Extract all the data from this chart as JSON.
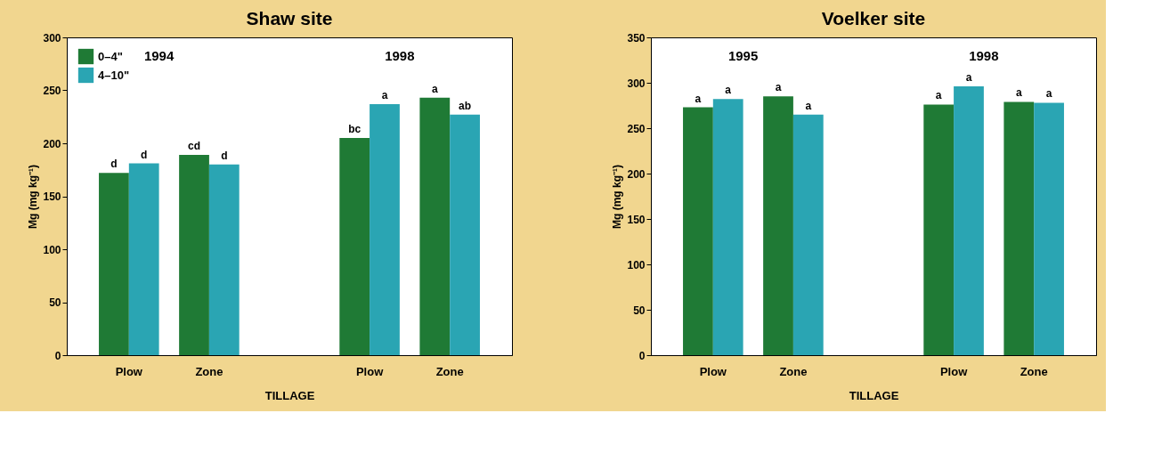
{
  "chart_data": [
    {
      "type": "bar",
      "title": "Shaw site",
      "xlabel": "TILLAGE",
      "ylabel": "Mg (mg kg⁻¹)",
      "categories": [
        "Plow",
        "Zone",
        null,
        "Plow",
        "Zone"
      ],
      "series": [
        {
          "name": "0–4\"",
          "color": "#1f7a35",
          "values": [
            172,
            189,
            null,
            205,
            243
          ],
          "value_labels": [
            "d",
            "cd",
            null,
            "bc",
            "a"
          ]
        },
        {
          "name": "4–10\"",
          "color": "#2aa5b3",
          "values": [
            181,
            180,
            null,
            237,
            227
          ],
          "value_labels": [
            "d",
            "d",
            null,
            "a",
            "ab"
          ]
        }
      ],
      "ylim": [
        0,
        300
      ],
      "yticks": [
        0,
        50,
        100,
        150,
        200,
        250,
        300
      ],
      "grid": false,
      "legend": "top left",
      "annotations": [
        "1994",
        "1998"
      ]
    },
    {
      "type": "bar",
      "title": "Voelker site",
      "xlabel": "TILLAGE",
      "ylabel": "Mg (mg kg⁻¹)",
      "categories": [
        "Plow",
        "Zone",
        null,
        "Plow",
        "Zone"
      ],
      "series": [
        {
          "name": "0–4\"",
          "color": "#1f7a35",
          "values": [
            273,
            285,
            null,
            276,
            279
          ],
          "value_labels": [
            "a",
            "a",
            null,
            "a",
            "a"
          ]
        },
        {
          "name": "4–10\"",
          "color": "#2aa5b3",
          "values": [
            282,
            265,
            null,
            296,
            278
          ],
          "value_labels": [
            "a",
            "a",
            null,
            "a",
            "a"
          ]
        }
      ],
      "ylim": [
        0,
        350
      ],
      "yticks": [
        0,
        50,
        100,
        150,
        200,
        250,
        300,
        350
      ],
      "grid": false,
      "legend": "top left",
      "annotations": [
        "1995",
        "1998"
      ]
    }
  ]
}
